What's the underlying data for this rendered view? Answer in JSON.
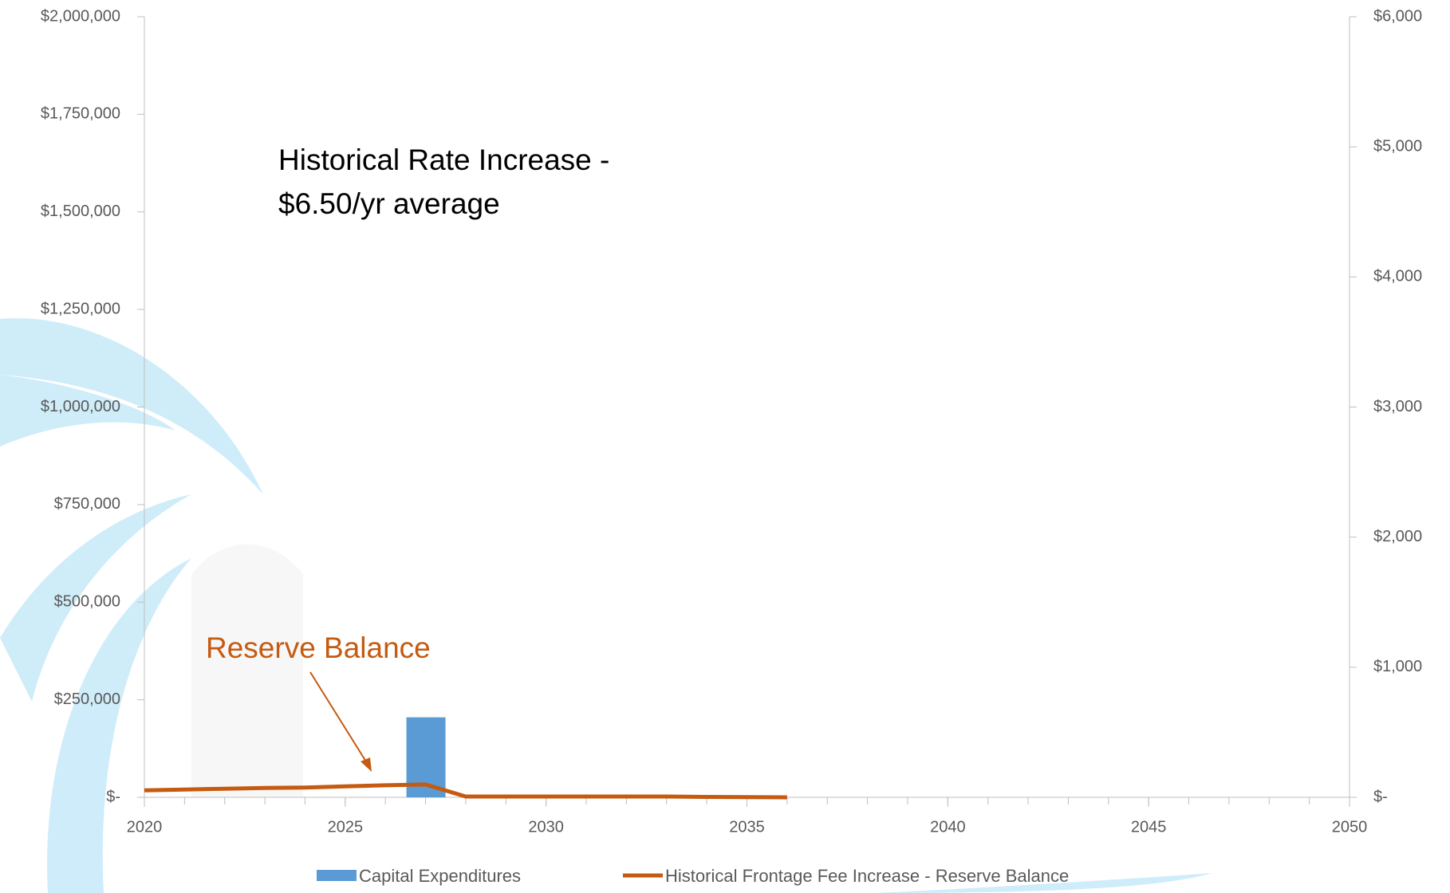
{
  "chart_data": {
    "type": "bar-line",
    "annotations": [
      "Historical Rate Increase -",
      "$6.50/yr average",
      "Reserve Balance"
    ],
    "x": [
      2020,
      2021,
      2022,
      2023,
      2024,
      2025,
      2026,
      2027,
      2028,
      2029,
      2030,
      2031,
      2032,
      2033,
      2034,
      2035,
      2036,
      2037,
      2038,
      2039,
      2040,
      2041,
      2042,
      2043,
      2044,
      2045,
      2046,
      2047,
      2048,
      2049,
      2050
    ],
    "xlim": [
      2020,
      2050
    ],
    "xticks": [
      2020,
      2025,
      2030,
      2035,
      2040,
      2045,
      2050
    ],
    "ylim": [
      0,
      2000000
    ],
    "yticks": [
      {
        "value": 0,
        "label": "$-"
      },
      {
        "value": 250000,
        "label": "$250,000"
      },
      {
        "value": 500000,
        "label": "$500,000"
      },
      {
        "value": 750000,
        "label": "$750,000"
      },
      {
        "value": 1000000,
        "label": "$1,000,000"
      },
      {
        "value": 1250000,
        "label": "$1,250,000"
      },
      {
        "value": 1500000,
        "label": "$1,500,000"
      },
      {
        "value": 1750000,
        "label": "$1,750,000"
      },
      {
        "value": 2000000,
        "label": "$2,000,000"
      }
    ],
    "y2lim": [
      0,
      6000
    ],
    "y2ticks": [
      {
        "value": 0,
        "label": "$-"
      },
      {
        "value": 1000,
        "label": "$1,000"
      },
      {
        "value": 2000,
        "label": "$2,000"
      },
      {
        "value": 3000,
        "label": "$3,000"
      },
      {
        "value": 4000,
        "label": "$4,000"
      },
      {
        "value": 5000,
        "label": "$5,000"
      },
      {
        "value": 6000,
        "label": "$6,000"
      }
    ],
    "series": [
      {
        "name": "Capital Expenditures",
        "type": "bar",
        "color": "#5b9bd5",
        "values": [
          0,
          0,
          0,
          0,
          0,
          0,
          0,
          205000,
          0,
          0,
          0,
          0,
          0,
          0,
          0,
          0,
          0,
          0,
          0,
          0,
          0,
          0,
          0,
          0,
          0,
          0,
          0,
          0,
          0,
          0,
          0
        ]
      },
      {
        "name": "Historical Frontage Fee Increase - Reserve Balance",
        "type": "line",
        "color": "#c55a11",
        "values": [
          18000,
          20000,
          22000,
          24000,
          25000,
          28000,
          31000,
          33000,
          2000,
          2000,
          2000,
          2000,
          2000,
          2000,
          1000,
          500,
          0,
          null,
          null,
          null,
          null,
          null,
          null,
          null,
          null,
          null,
          null,
          null,
          null,
          null,
          null
        ]
      }
    ]
  }
}
